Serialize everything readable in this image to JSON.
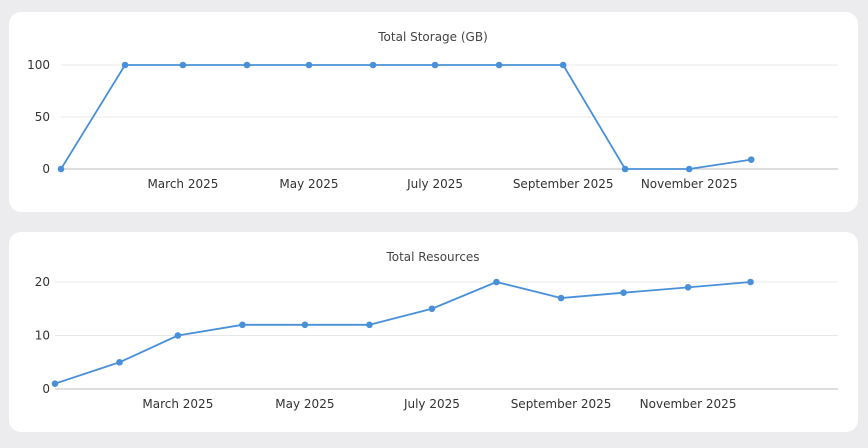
{
  "colors": {
    "series": "#4a90d9",
    "grid": "#e8e8e8",
    "axis": "#bdbdbd"
  },
  "chart_data": [
    {
      "type": "line",
      "title": "Total Storage (GB)",
      "x": [
        "2025-01-01",
        "2025-02-01",
        "2025-03-01",
        "2025-04-01",
        "2025-05-01",
        "2025-06-01",
        "2025-07-01",
        "2025-08-01",
        "2025-09-01",
        "2025-10-01",
        "2025-11-01",
        "2025-12-01"
      ],
      "series": [
        {
          "values": [
            0,
            100,
            100,
            100,
            100,
            100,
            100,
            100,
            100,
            0,
            0,
            9
          ]
        }
      ],
      "xlim": [
        "2025-01-01",
        "2026-01-12"
      ],
      "ylim": [
        0,
        100
      ],
      "yticks": [
        0,
        50,
        100
      ],
      "xticks": [
        {
          "date": "2025-03-01",
          "label": "March 2025"
        },
        {
          "date": "2025-05-01",
          "label": "May 2025"
        },
        {
          "date": "2025-07-01",
          "label": "July 2025"
        },
        {
          "date": "2025-09-01",
          "label": "September 2025"
        },
        {
          "date": "2025-11-01",
          "label": "November 2025"
        }
      ],
      "grid": true
    },
    {
      "type": "line",
      "title": "Total Resources",
      "x": [
        "2025-01-01",
        "2025-02-01",
        "2025-03-01",
        "2025-04-01",
        "2025-05-01",
        "2025-06-01",
        "2025-07-01",
        "2025-08-01",
        "2025-09-01",
        "2025-10-01",
        "2025-11-01",
        "2025-12-01"
      ],
      "series": [
        {
          "values": [
            1,
            5,
            10,
            12,
            12,
            12,
            15,
            20,
            17,
            18,
            19,
            20
          ]
        }
      ],
      "xlim": [
        "2025-01-01",
        "2026-01-12"
      ],
      "ylim": [
        0,
        20
      ],
      "yticks": [
        0,
        10,
        20
      ],
      "xticks": [
        {
          "date": "2025-03-01",
          "label": "March 2025"
        },
        {
          "date": "2025-05-01",
          "label": "May 2025"
        },
        {
          "date": "2025-07-01",
          "label": "July 2025"
        },
        {
          "date": "2025-09-01",
          "label": "September 2025"
        },
        {
          "date": "2025-11-01",
          "label": "November 2025"
        }
      ],
      "grid": true
    }
  ]
}
